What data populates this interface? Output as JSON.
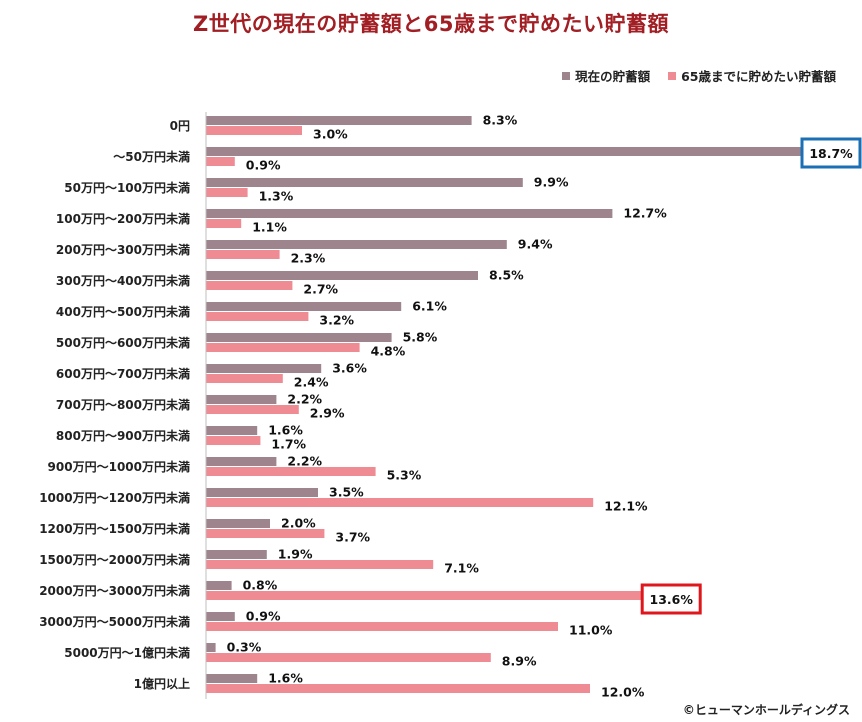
{
  "title": "Z世代の現在の貯蓄額と65歳まで貯めたい貯蓄額",
  "legend": [
    {
      "label": "現在の貯蓄額",
      "color": "#9e858d"
    },
    {
      "label": "65歳までに貯めたい貯蓄額",
      "color": "#ee8b93"
    }
  ],
  "copyright": "©ヒューマンホールディングス",
  "chart_data": {
    "type": "bar",
    "orientation": "horizontal",
    "title": "Z世代の現在の貯蓄額と65歳まで貯めたい貯蓄額",
    "categories": [
      "0円",
      "～50万円未満",
      "50万円～100万円未満",
      "100万円～200万円未満",
      "200万円～300万円未満",
      "300万円～400万円未満",
      "400万円～500万円未満",
      "500万円～600万円未満",
      "600万円～700万円未満",
      "700万円～800万円未満",
      "800万円～900万円未満",
      "900万円～1000万円未満",
      "1000万円～1200万円未満",
      "1200万円～1500万円未満",
      "1500万円～2000万円未満",
      "2000万円～3000万円未満",
      "3000万円～5000万円未満",
      "5000万円～1億円未満",
      "1億円以上"
    ],
    "series": [
      {
        "name": "現在の貯蓄額",
        "color": "#9e858d",
        "values": [
          8.3,
          18.7,
          9.9,
          12.7,
          9.4,
          8.5,
          6.1,
          5.8,
          3.6,
          2.2,
          1.6,
          2.2,
          3.5,
          2.0,
          1.9,
          0.8,
          0.9,
          0.3,
          1.6
        ]
      },
      {
        "name": "65歳までに貯めたい貯蓄額",
        "color": "#ee8b93",
        "values": [
          3.0,
          0.9,
          1.3,
          1.1,
          2.3,
          2.7,
          3.2,
          4.8,
          2.4,
          2.9,
          1.7,
          5.3,
          12.1,
          3.7,
          7.1,
          13.6,
          11.0,
          8.9,
          12.0
        ]
      }
    ],
    "value_suffix": "%",
    "highlights": [
      {
        "series": 0,
        "index": 1,
        "color": "#1a6fb5"
      },
      {
        "series": 1,
        "index": 15,
        "color": "#e0161d"
      }
    ]
  }
}
